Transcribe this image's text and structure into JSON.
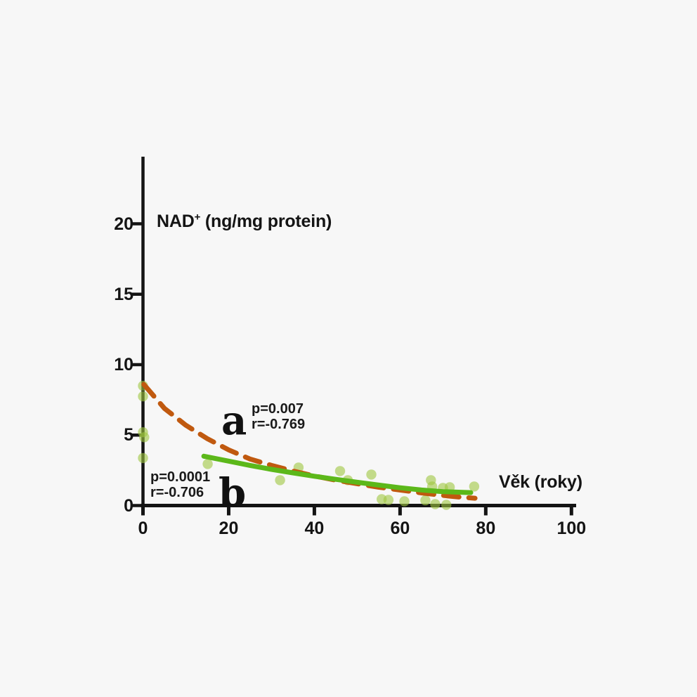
{
  "page": {
    "background": "#f7f7f7"
  },
  "chart_data": {
    "type": "scatter",
    "title": "",
    "x_axis": {
      "title": "Věk (roky)",
      "ticks": [
        0,
        20,
        40,
        60,
        80,
        100
      ],
      "range": [
        0,
        100
      ]
    },
    "y_axis": {
      "title_base": "NAD",
      "title_sup": "+",
      "title_rest": " (ng/mg protein)",
      "ticks": [
        0,
        5,
        10,
        15,
        20
      ],
      "range": [
        0,
        24
      ]
    },
    "grid": false,
    "axis_color": "#141414",
    "point_color": "#9ec740",
    "point_opacity": 0.6,
    "points": [
      [
        0,
        8.5
      ],
      [
        0,
        7.75
      ],
      [
        0,
        5.2
      ],
      [
        0.3,
        4.85
      ],
      [
        0,
        3.37
      ],
      [
        15.1,
        2.95
      ],
      [
        32,
        1.8
      ],
      [
        36.3,
        2.7
      ],
      [
        46,
        2.45
      ],
      [
        47.8,
        1.8
      ],
      [
        53.3,
        2.2
      ],
      [
        55.7,
        0.45
      ],
      [
        57.3,
        0.4
      ],
      [
        61,
        0.3
      ],
      [
        65.9,
        0.37
      ],
      [
        67.2,
        1.8
      ],
      [
        67.5,
        1.35
      ],
      [
        68.2,
        0.1
      ],
      [
        70,
        1.25
      ],
      [
        70.8,
        0.05
      ],
      [
        71.6,
        1.3
      ],
      [
        77.3,
        1.35
      ]
    ],
    "fits": [
      {
        "id": "a",
        "label": "a",
        "style": "dashed",
        "color": "#c0590f",
        "stats_p": "p=0.007",
        "stats_r": "r=-0.769",
        "curve": [
          [
            0.2,
            8.6
          ],
          [
            5,
            6.9
          ],
          [
            10,
            5.7
          ],
          [
            15,
            4.75
          ],
          [
            20,
            3.95
          ],
          [
            25,
            3.3
          ],
          [
            30,
            2.85
          ],
          [
            35,
            2.45
          ],
          [
            40,
            2.1
          ],
          [
            45,
            1.8
          ],
          [
            50,
            1.55
          ],
          [
            55,
            1.3
          ],
          [
            60,
            1.1
          ],
          [
            65,
            0.9
          ],
          [
            70,
            0.72
          ],
          [
            74,
            0.6
          ],
          [
            77.5,
            0.52
          ]
        ]
      },
      {
        "id": "b",
        "label": "b",
        "style": "solid",
        "color": "#5cb81a",
        "stats_p": "p=0.0001",
        "stats_r": "r=-0.706",
        "curve": [
          [
            14.2,
            3.5
          ],
          [
            20,
            3.15
          ],
          [
            25,
            2.85
          ],
          [
            30,
            2.57
          ],
          [
            35,
            2.32
          ],
          [
            40,
            2.08
          ],
          [
            45,
            1.86
          ],
          [
            50,
            1.65
          ],
          [
            55,
            1.45
          ],
          [
            60,
            1.26
          ],
          [
            65,
            1.1
          ],
          [
            70,
            0.99
          ],
          [
            76.5,
            0.92
          ]
        ]
      }
    ]
  }
}
